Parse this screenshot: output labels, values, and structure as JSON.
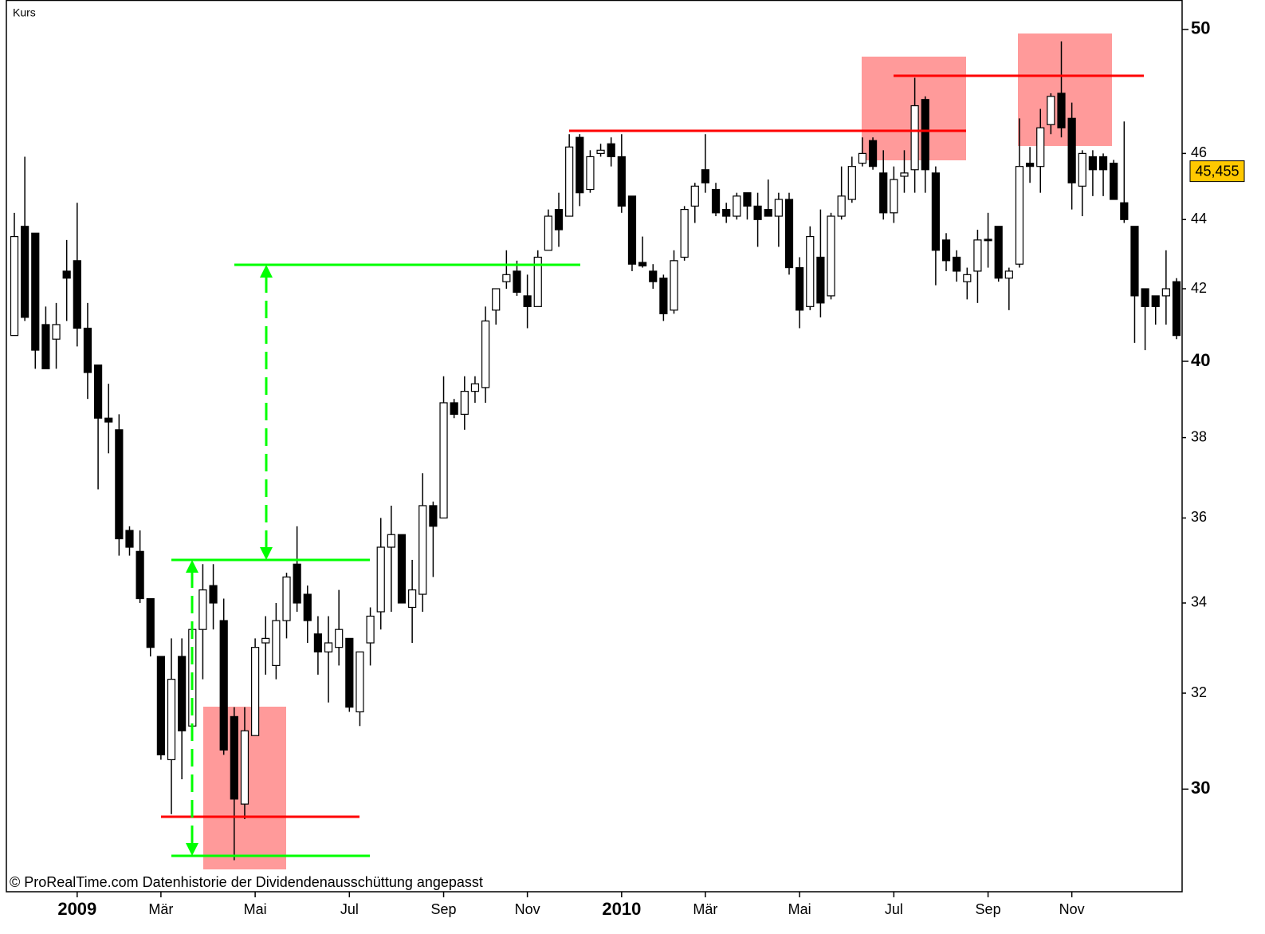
{
  "chart_data": {
    "type": "candlestick",
    "title": "Kurs",
    "footnote": "© ProRealTime.com  Datenhistorie der Dividendenausschüttung angepasst",
    "categories": [
      null,
      null,
      null,
      null,
      null,
      null,
      "2009",
      null,
      null,
      null,
      null,
      null,
      null,
      null,
      "Mär",
      null,
      null,
      null,
      null,
      null,
      null,
      null,
      null,
      "Mai",
      null,
      null,
      null,
      null,
      null,
      null,
      null,
      null,
      "Jul",
      null,
      null,
      null,
      null,
      null,
      null,
      null,
      null,
      "Sep",
      null,
      null,
      null,
      null,
      null,
      null,
      null,
      "Nov",
      null,
      null,
      null,
      null,
      null,
      null,
      null,
      null,
      "2010",
      null,
      null,
      null,
      null,
      null,
      null,
      null,
      "Mär",
      null,
      null,
      null,
      null,
      null,
      null,
      null,
      null,
      "Mai",
      null,
      null,
      null,
      null,
      null,
      null,
      null,
      null,
      "Jul",
      null,
      null,
      null,
      null,
      null,
      null,
      null,
      null,
      "Sep",
      null,
      null,
      null,
      null,
      null,
      null,
      null,
      "Nov",
      null,
      null,
      null,
      null,
      null,
      null,
      null,
      null,
      null,
      null
    ],
    "open": [
      40.7,
      43.8,
      43.6,
      41.0,
      40.6,
      42.5,
      42.8,
      40.9,
      39.9,
      38.5,
      38.2,
      35.7,
      35.2,
      34.1,
      32.8,
      30.6,
      32.8,
      31.3,
      33.4,
      34.4,
      33.6,
      31.5,
      29.7,
      31.1,
      33.1,
      32.6,
      33.6,
      34.9,
      34.2,
      33.3,
      32.9,
      33.0,
      33.2,
      31.6,
      33.1,
      33.8,
      35.3,
      35.6,
      33.9,
      34.2,
      36.3,
      36.0,
      38.9,
      38.6,
      39.2,
      39.3,
      41.4,
      42.2,
      42.5,
      41.8,
      41.5,
      43.1,
      44.3,
      44.1,
      46.5,
      44.9,
      46.0,
      46.3,
      45.9,
      44.7,
      42.75,
      42.5,
      42.3,
      41.4,
      42.9,
      44.4,
      45.5,
      44.9,
      44.3,
      44.1,
      44.8,
      44.4,
      44.3,
      44.1,
      44.6,
      42.6,
      41.5,
      42.9,
      41.8,
      44.1,
      44.6,
      45.7,
      46.4,
      45.4,
      44.2,
      45.3,
      45.5,
      47.7,
      45.4,
      43.4,
      42.9,
      42.2,
      42.5,
      43.42,
      43.8,
      42.3,
      42.7,
      45.7,
      45.6,
      46.9,
      47.9,
      47.1,
      45.0,
      45.9,
      45.9,
      45.7,
      44.5,
      43.8,
      42.0,
      41.8,
      41.8,
      42.2
    ],
    "high": [
      44.2,
      45.9,
      43.6,
      41.5,
      41.6,
      43.4,
      44.5,
      41.6,
      39.9,
      39.4,
      38.6,
      35.8,
      35.7,
      34.1,
      32.8,
      33.2,
      33.2,
      33.4,
      34.9,
      34.9,
      34.1,
      31.7,
      31.7,
      33.2,
      33.7,
      34.0,
      34.7,
      35.8,
      34.4,
      33.7,
      33.7,
      34.3,
      33.2,
      32.9,
      33.9,
      36.0,
      36.3,
      35.6,
      35.0,
      37.1,
      36.4,
      39.6,
      39.0,
      39.6,
      39.6,
      41.5,
      42.0,
      43.1,
      42.8,
      42.4,
      43.1,
      44.3,
      44.8,
      46.6,
      46.6,
      46.1,
      46.3,
      46.5,
      46.6,
      44.7,
      43.5,
      42.7,
      42.4,
      43.1,
      44.4,
      45.1,
      46.6,
      45.1,
      44.5,
      44.8,
      44.8,
      44.8,
      45.2,
      44.8,
      44.8,
      42.9,
      43.8,
      44.3,
      44.2,
      45.6,
      45.9,
      46.5,
      46.5,
      46.1,
      45.6,
      46.1,
      48.4,
      47.8,
      45.6,
      43.6,
      43.1,
      42.6,
      43.7,
      44.2,
      43.8,
      42.6,
      47.1,
      46.2,
      47.4,
      47.9,
      49.6,
      47.6,
      46.1,
      46.1,
      46.0,
      45.8,
      47.0,
      43.8,
      42.0,
      41.8,
      43.1,
      42.3
    ],
    "low": [
      40.7,
      41.1,
      39.8,
      39.8,
      39.8,
      41.1,
      40.4,
      39.0,
      36.7,
      37.6,
      35.1,
      35.1,
      34.0,
      32.8,
      30.6,
      29.5,
      30.2,
      31.3,
      32.3,
      33.4,
      30.7,
      28.6,
      29.4,
      31.1,
      32.4,
      32.3,
      33.2,
      33.8,
      33.1,
      32.4,
      31.8,
      32.6,
      31.6,
      31.3,
      32.6,
      33.4,
      33.8,
      34.0,
      33.1,
      33.8,
      34.6,
      36.0,
      38.5,
      38.2,
      38.9,
      38.9,
      41.0,
      42.0,
      41.8,
      40.9,
      41.5,
      43.1,
      43.2,
      44.1,
      44.4,
      44.8,
      45.9,
      45.6,
      44.2,
      42.5,
      42.6,
      42.0,
      41.1,
      41.3,
      42.8,
      43.9,
      44.8,
      44.1,
      43.9,
      44.0,
      44.0,
      43.2,
      44.1,
      43.2,
      42.4,
      40.9,
      41.4,
      41.2,
      41.7,
      44.0,
      44.5,
      45.6,
      45.5,
      44.0,
      43.9,
      44.8,
      44.8,
      44.8,
      42.1,
      42.5,
      42.2,
      41.7,
      41.6,
      42.6,
      42.2,
      41.4,
      42.6,
      45.1,
      44.8,
      46.6,
      46.5,
      44.3,
      44.1,
      44.7,
      44.7,
      44.6,
      43.9,
      40.5,
      40.3,
      41.0,
      41.0,
      40.6
    ],
    "close": [
      43.5,
      41.2,
      40.3,
      39.8,
      41.0,
      42.3,
      40.9,
      39.7,
      38.5,
      38.4,
      35.5,
      35.3,
      34.1,
      33.0,
      30.7,
      32.3,
      31.2,
      33.4,
      34.3,
      34.0,
      30.8,
      29.8,
      31.2,
      33.0,
      33.2,
      33.6,
      34.6,
      34.0,
      33.6,
      32.9,
      33.1,
      33.4,
      31.7,
      32.9,
      33.7,
      35.3,
      35.6,
      34.0,
      34.3,
      36.3,
      35.8,
      38.9,
      38.6,
      39.2,
      39.4,
      41.1,
      42.0,
      42.4,
      41.9,
      41.5,
      42.9,
      44.1,
      43.7,
      46.2,
      44.8,
      45.9,
      46.1,
      45.9,
      44.4,
      42.7,
      42.65,
      42.2,
      41.3,
      42.8,
      44.3,
      45.0,
      45.1,
      44.2,
      44.1,
      44.7,
      44.4,
      44.0,
      44.1,
      44.6,
      42.6,
      41.4,
      43.5,
      41.6,
      44.1,
      44.7,
      45.6,
      46.0,
      45.6,
      44.2,
      45.2,
      45.4,
      47.5,
      45.5,
      43.1,
      42.8,
      42.5,
      42.4,
      43.4,
      43.38,
      42.3,
      42.5,
      45.6,
      45.6,
      46.8,
      47.8,
      46.8,
      45.1,
      46.0,
      45.5,
      45.5,
      44.6,
      44.0,
      41.8,
      41.5,
      41.5,
      42.0,
      40.7
    ],
    "up_color": "#ffffff",
    "down_color": "#000000",
    "last_price": {
      "value": 45.455,
      "label": "45,455"
    },
    "last_price_color": "#ffc800",
    "ylim": [
      28,
      51
    ],
    "yticks": [
      30,
      32,
      34,
      36,
      38,
      40,
      42,
      44,
      46,
      50
    ],
    "log_scale": true,
    "y_axis_side": "right"
  }
}
